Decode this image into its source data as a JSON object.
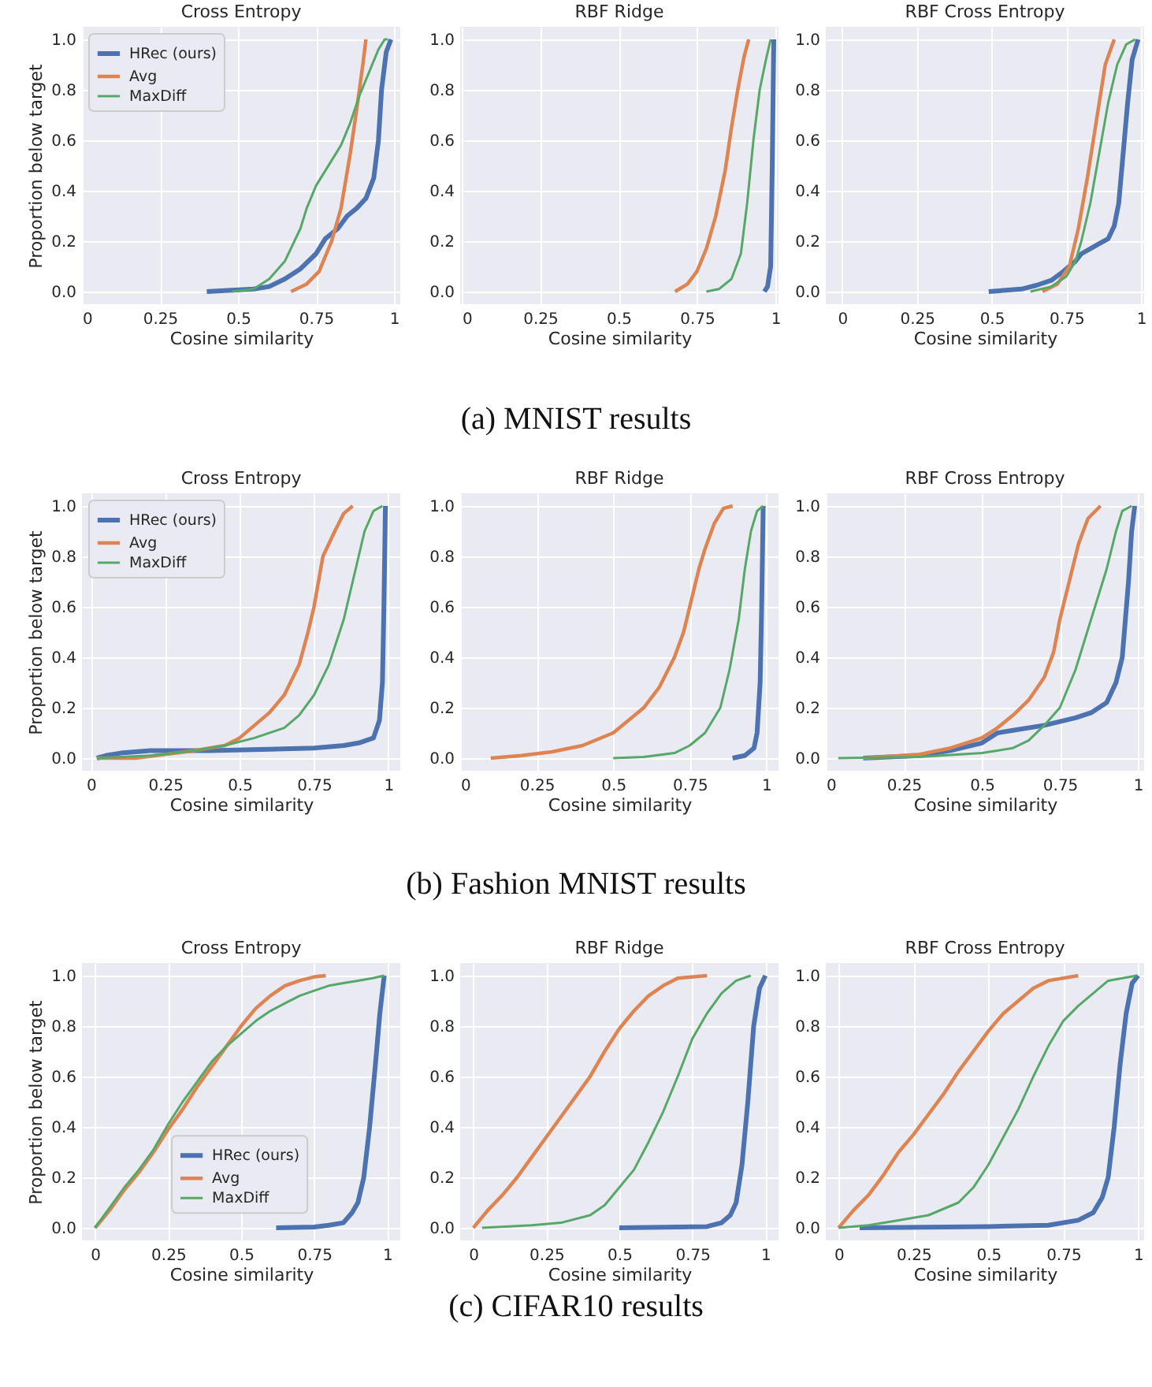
{
  "chart_data": [
    {
      "type": "line",
      "title": "Cross Entropy",
      "xlabel": "Cosine similarity",
      "ylabel": "Proportion below target",
      "xlim": [
        0,
        1.02
      ],
      "ylim": [
        -0.05,
        1.05
      ],
      "xticks": [
        0,
        0.25,
        0.5,
        0.75,
        1
      ],
      "yticks": [
        {
          "value": 0,
          "label": "0.0"
        },
        {
          "value": 0.2,
          "label": "0.2"
        },
        {
          "value": 0.4,
          "label": "0.4"
        },
        {
          "value": 0.6,
          "label": "0.6"
        },
        {
          "value": 0.8,
          "label": "0.8"
        },
        {
          "value": 1,
          "label": "1.0"
        }
      ],
      "grid": true,
      "legend": "top left",
      "series": [
        {
          "name": "HRec (ours)",
          "color": "#4c72b0",
          "x": [
            0.4,
            0.55,
            0.6,
            0.65,
            0.7,
            0.75,
            0.78,
            0.82,
            0.85,
            0.88,
            0.91,
            0.935,
            0.95,
            0.96,
            0.975,
            0.99
          ],
          "values": [
            0,
            0.01,
            0.02,
            0.05,
            0.09,
            0.15,
            0.21,
            0.25,
            0.3,
            0.33,
            0.37,
            0.45,
            0.6,
            0.8,
            0.95,
            1
          ]
        },
        {
          "name": "Avg",
          "color": "#dd8452",
          "x": [
            0.67,
            0.72,
            0.76,
            0.8,
            0.83,
            0.86,
            0.88,
            0.9,
            0.91
          ],
          "values": [
            0,
            0.03,
            0.08,
            0.2,
            0.33,
            0.55,
            0.72,
            0.9,
            1
          ]
        },
        {
          "name": "MaxDiff",
          "color": "#55a868",
          "x": [
            0.48,
            0.55,
            0.6,
            0.65,
            0.7,
            0.72,
            0.75,
            0.8,
            0.83,
            0.86,
            0.89,
            0.92,
            0.95,
            0.97,
            0.98
          ],
          "values": [
            0,
            0.01,
            0.05,
            0.12,
            0.25,
            0.33,
            0.42,
            0.52,
            0.58,
            0.67,
            0.78,
            0.87,
            0.96,
            1,
            1
          ]
        }
      ],
      "annotations": [
        "(a) MNIST results"
      ]
    },
    {
      "type": "line",
      "title": "RBF Ridge",
      "xlabel": "Cosine similarity",
      "xlim": [
        -0.005,
        1.01
      ],
      "ylim": [
        -0.05,
        1.05
      ],
      "xticks": [
        0,
        0.25,
        0.5,
        0.75,
        1
      ],
      "yticks": [
        {
          "value": 0,
          "label": "0.0"
        },
        {
          "value": 0.2,
          "label": "0.2"
        },
        {
          "value": 0.4,
          "label": "0.4"
        },
        {
          "value": 0.6,
          "label": "0.6"
        },
        {
          "value": 0.8,
          "label": "0.8"
        },
        {
          "value": 1,
          "label": "1.0"
        }
      ],
      "grid": true,
      "series": [
        {
          "color": "#4c72b0",
          "x": [
            0.965,
            0.975,
            0.985,
            0.99,
            0.995
          ],
          "values": [
            0,
            0.02,
            0.1,
            0.5,
            1
          ]
        },
        {
          "color": "#dd8452",
          "x": [
            0.68,
            0.72,
            0.75,
            0.78,
            0.81,
            0.84,
            0.86,
            0.88,
            0.9,
            0.915
          ],
          "values": [
            0,
            0.03,
            0.08,
            0.17,
            0.3,
            0.48,
            0.65,
            0.8,
            0.93,
            1
          ]
        },
        {
          "color": "#55a868",
          "x": [
            0.78,
            0.82,
            0.86,
            0.89,
            0.91,
            0.93,
            0.95,
            0.97,
            0.985
          ],
          "values": [
            0,
            0.01,
            0.05,
            0.15,
            0.35,
            0.6,
            0.8,
            0.92,
            1
          ]
        }
      ]
    },
    {
      "type": "line",
      "title": "RBF Cross Entropy",
      "xlabel": "Cosine similarity",
      "xlim": [
        -0.055,
        1.01
      ],
      "ylim": [
        -0.05,
        1.05
      ],
      "xticks": [
        0,
        0.25,
        0.5,
        0.75,
        1
      ],
      "yticks": [
        {
          "value": 0,
          "label": "0.0"
        },
        {
          "value": 0.2,
          "label": "0.2"
        },
        {
          "value": 0.4,
          "label": "0.4"
        },
        {
          "value": 0.6,
          "label": "0.6"
        },
        {
          "value": 0.8,
          "label": "0.8"
        },
        {
          "value": 1,
          "label": "1.0"
        }
      ],
      "grid": true,
      "series": [
        {
          "color": "#4c72b0",
          "x": [
            0.49,
            0.6,
            0.65,
            0.7,
            0.74,
            0.78,
            0.8,
            0.83,
            0.86,
            0.89,
            0.91,
            0.925,
            0.94,
            0.955,
            0.97,
            0.99
          ],
          "values": [
            0,
            0.01,
            0.025,
            0.045,
            0.08,
            0.12,
            0.15,
            0.17,
            0.19,
            0.21,
            0.26,
            0.35,
            0.55,
            0.75,
            0.92,
            1
          ]
        },
        {
          "color": "#dd8452",
          "x": [
            0.67,
            0.72,
            0.76,
            0.79,
            0.82,
            0.84,
            0.86,
            0.88,
            0.91
          ],
          "values": [
            0,
            0.03,
            0.1,
            0.25,
            0.45,
            0.6,
            0.75,
            0.9,
            1
          ]
        },
        {
          "color": "#55a868",
          "x": [
            0.63,
            0.7,
            0.75,
            0.78,
            0.8,
            0.83,
            0.86,
            0.89,
            0.92,
            0.95,
            0.98
          ],
          "values": [
            0,
            0.02,
            0.06,
            0.12,
            0.2,
            0.35,
            0.55,
            0.75,
            0.9,
            0.98,
            1
          ]
        }
      ]
    },
    {
      "type": "line",
      "title": "Cross Entropy",
      "xlabel": "Cosine similarity",
      "ylabel": "Proportion below target",
      "xlim": [
        -0.03,
        1.04
      ],
      "ylim": [
        -0.05,
        1.05
      ],
      "xticks": [
        0,
        0.25,
        0.5,
        0.75,
        1
      ],
      "yticks": [
        {
          "value": 0,
          "label": "0.0"
        },
        {
          "value": 0.2,
          "label": "0.2"
        },
        {
          "value": 0.4,
          "label": "0.4"
        },
        {
          "value": 0.6,
          "label": "0.6"
        },
        {
          "value": 0.8,
          "label": "0.8"
        },
        {
          "value": 1,
          "label": "1.0"
        }
      ],
      "grid": true,
      "legend": "top left",
      "series": [
        {
          "name": "HRec (ours)",
          "color": "#4c72b0",
          "x": [
            0.02,
            0.05,
            0.1,
            0.2,
            0.4,
            0.6,
            0.75,
            0.85,
            0.9,
            0.95,
            0.97,
            0.98,
            0.985,
            0.99
          ],
          "values": [
            0,
            0.01,
            0.02,
            0.03,
            0.03,
            0.035,
            0.04,
            0.05,
            0.06,
            0.08,
            0.15,
            0.3,
            0.6,
            1
          ]
        },
        {
          "name": "Avg",
          "color": "#dd8452",
          "x": [
            0.02,
            0.15,
            0.25,
            0.35,
            0.45,
            0.5,
            0.55,
            0.6,
            0.65,
            0.7,
            0.73,
            0.75,
            0.78,
            0.82,
            0.85,
            0.88
          ],
          "values": [
            0,
            0,
            0.015,
            0.03,
            0.05,
            0.08,
            0.13,
            0.18,
            0.25,
            0.37,
            0.5,
            0.6,
            0.8,
            0.9,
            0.97,
            1
          ]
        },
        {
          "name": "MaxDiff",
          "color": "#55a868",
          "x": [
            0.02,
            0.2,
            0.35,
            0.45,
            0.55,
            0.65,
            0.7,
            0.75,
            0.8,
            0.85,
            0.88,
            0.92,
            0.95,
            0.98
          ],
          "values": [
            0,
            0.01,
            0.03,
            0.05,
            0.08,
            0.12,
            0.17,
            0.25,
            0.37,
            0.55,
            0.7,
            0.9,
            0.98,
            1
          ]
        }
      ],
      "annotations": [
        "(b) Fashion MNIST results"
      ]
    },
    {
      "type": "line",
      "title": "RBF Ridge",
      "xlabel": "Cosine similarity",
      "xlim": [
        0,
        1.04
      ],
      "ylim": [
        -0.05,
        1.05
      ],
      "xticks": [
        0,
        0.25,
        0.5,
        0.75,
        1
      ],
      "yticks": [
        {
          "value": 0,
          "label": "0.0"
        },
        {
          "value": 0.2,
          "label": "0.2"
        },
        {
          "value": 0.4,
          "label": "0.4"
        },
        {
          "value": 0.6,
          "label": "0.6"
        },
        {
          "value": 0.8,
          "label": "0.8"
        },
        {
          "value": 1,
          "label": "1.0"
        }
      ],
      "grid": true,
      "series": [
        {
          "color": "#4c72b0",
          "x": [
            0.89,
            0.93,
            0.96,
            0.97,
            0.98,
            0.985,
            0.99
          ],
          "values": [
            0,
            0.01,
            0.04,
            0.1,
            0.3,
            0.6,
            1
          ]
        },
        {
          "color": "#dd8452",
          "x": [
            0.1,
            0.2,
            0.3,
            0.4,
            0.5,
            0.55,
            0.6,
            0.65,
            0.7,
            0.73,
            0.75,
            0.78,
            0.8,
            0.83,
            0.86,
            0.89
          ],
          "values": [
            0,
            0.01,
            0.025,
            0.05,
            0.1,
            0.15,
            0.2,
            0.28,
            0.4,
            0.5,
            0.6,
            0.75,
            0.83,
            0.93,
            0.99,
            1
          ]
        },
        {
          "color": "#55a868",
          "x": [
            0.5,
            0.6,
            0.7,
            0.75,
            0.8,
            0.85,
            0.88,
            0.91,
            0.93,
            0.95,
            0.97,
            0.99
          ],
          "values": [
            0,
            0.005,
            0.02,
            0.05,
            0.1,
            0.2,
            0.35,
            0.55,
            0.75,
            0.9,
            0.98,
            1
          ]
        }
      ]
    },
    {
      "type": "line",
      "title": "RBF Cross Entropy",
      "xlabel": "Cosine similarity",
      "xlim": [
        0,
        1.02
      ],
      "ylim": [
        -0.05,
        1.05
      ],
      "xticks": [
        0,
        0.25,
        0.5,
        0.75,
        1
      ],
      "yticks": [
        {
          "value": 0,
          "label": "0.0"
        },
        {
          "value": 0.2,
          "label": "0.2"
        },
        {
          "value": 0.4,
          "label": "0.4"
        },
        {
          "value": 0.6,
          "label": "0.6"
        },
        {
          "value": 0.8,
          "label": "0.8"
        },
        {
          "value": 1,
          "label": "1.0"
        }
      ],
      "grid": true,
      "series": [
        {
          "color": "#4c72b0",
          "x": [
            0.12,
            0.3,
            0.4,
            0.5,
            0.55,
            0.6,
            0.7,
            0.8,
            0.85,
            0.9,
            0.93,
            0.95,
            0.96,
            0.97,
            0.98,
            0.99
          ],
          "values": [
            0,
            0.01,
            0.03,
            0.06,
            0.1,
            0.11,
            0.13,
            0.16,
            0.18,
            0.22,
            0.3,
            0.4,
            0.55,
            0.7,
            0.9,
            1
          ]
        },
        {
          "color": "#dd8452",
          "x": [
            0.12,
            0.3,
            0.4,
            0.5,
            0.55,
            0.6,
            0.65,
            0.7,
            0.73,
            0.75,
            0.78,
            0.81,
            0.84,
            0.88
          ],
          "values": [
            0,
            0.015,
            0.04,
            0.08,
            0.12,
            0.17,
            0.23,
            0.32,
            0.42,
            0.55,
            0.7,
            0.85,
            0.95,
            1
          ]
        },
        {
          "color": "#55a868",
          "x": [
            0.04,
            0.3,
            0.5,
            0.6,
            0.65,
            0.7,
            0.75,
            0.8,
            0.85,
            0.9,
            0.93,
            0.95,
            0.98
          ],
          "values": [
            0,
            0.005,
            0.02,
            0.04,
            0.07,
            0.13,
            0.2,
            0.35,
            0.55,
            0.75,
            0.9,
            0.98,
            1
          ]
        }
      ]
    },
    {
      "type": "line",
      "title": "Cross Entropy",
      "xlabel": "Cosine similarity",
      "ylabel": "Proportion below target",
      "xlim": [
        -0.045,
        1.045
      ],
      "ylim": [
        -0.05,
        1.05
      ],
      "xticks": [
        0,
        0.25,
        0.5,
        0.75,
        1
      ],
      "yticks": [
        {
          "value": 0,
          "label": "0.0"
        },
        {
          "value": 0.2,
          "label": "0.2"
        },
        {
          "value": 0.4,
          "label": "0.4"
        },
        {
          "value": 0.6,
          "label": "0.6"
        },
        {
          "value": 0.8,
          "label": "0.8"
        },
        {
          "value": 1,
          "label": "1.0"
        }
      ],
      "grid": true,
      "legend": "bottom",
      "series": [
        {
          "name": "HRec (ours)",
          "color": "#4c72b0",
          "x": [
            0.62,
            0.75,
            0.8,
            0.85,
            0.88,
            0.9,
            0.92,
            0.94,
            0.96,
            0.975,
            0.99
          ],
          "values": [
            0,
            0.003,
            0.01,
            0.02,
            0.06,
            0.1,
            0.2,
            0.4,
            0.65,
            0.85,
            1
          ]
        },
        {
          "name": "Avg",
          "color": "#dd8452",
          "x": [
            0,
            0.05,
            0.1,
            0.15,
            0.2,
            0.25,
            0.3,
            0.35,
            0.4,
            0.45,
            0.5,
            0.55,
            0.6,
            0.65,
            0.7,
            0.75,
            0.79
          ],
          "values": [
            0,
            0.07,
            0.15,
            0.22,
            0.3,
            0.39,
            0.47,
            0.56,
            0.64,
            0.72,
            0.8,
            0.87,
            0.92,
            0.96,
            0.98,
            0.995,
            1
          ]
        },
        {
          "name": "MaxDiff",
          "color": "#55a868",
          "x": [
            0,
            0.05,
            0.1,
            0.15,
            0.2,
            0.25,
            0.3,
            0.35,
            0.4,
            0.45,
            0.5,
            0.55,
            0.6,
            0.65,
            0.7,
            0.75,
            0.8,
            0.85,
            0.9,
            0.95,
            0.99
          ],
          "values": [
            0,
            0.08,
            0.16,
            0.23,
            0.31,
            0.41,
            0.5,
            0.58,
            0.66,
            0.72,
            0.77,
            0.82,
            0.86,
            0.89,
            0.92,
            0.94,
            0.96,
            0.97,
            0.98,
            0.99,
            1
          ]
        }
      ],
      "annotations": [
        "(c) CIFAR10 results"
      ]
    },
    {
      "type": "line",
      "title": "RBF Ridge",
      "xlabel": "Cosine similarity",
      "xlim": [
        -0.045,
        1.045
      ],
      "ylim": [
        -0.05,
        1.05
      ],
      "xticks": [
        0,
        0.25,
        0.5,
        0.75,
        1
      ],
      "yticks": [
        {
          "value": 0,
          "label": "0.0"
        },
        {
          "value": 0.2,
          "label": "0.2"
        },
        {
          "value": 0.4,
          "label": "0.4"
        },
        {
          "value": 0.6,
          "label": "0.6"
        },
        {
          "value": 0.8,
          "label": "0.8"
        },
        {
          "value": 1,
          "label": "1.0"
        }
      ],
      "grid": true,
      "series": [
        {
          "color": "#4c72b0",
          "x": [
            0.5,
            0.8,
            0.85,
            0.88,
            0.9,
            0.92,
            0.94,
            0.96,
            0.98,
            1
          ],
          "values": [
            0,
            0.005,
            0.02,
            0.05,
            0.1,
            0.25,
            0.5,
            0.8,
            0.95,
            1
          ]
        },
        {
          "color": "#dd8452",
          "x": [
            0,
            0.05,
            0.1,
            0.15,
            0.2,
            0.25,
            0.3,
            0.35,
            0.4,
            0.45,
            0.5,
            0.55,
            0.6,
            0.65,
            0.7,
            0.8
          ],
          "values": [
            0,
            0.07,
            0.13,
            0.2,
            0.28,
            0.36,
            0.44,
            0.52,
            0.6,
            0.7,
            0.79,
            0.86,
            0.92,
            0.96,
            0.99,
            1
          ]
        },
        {
          "color": "#55a868",
          "x": [
            0.03,
            0.2,
            0.3,
            0.4,
            0.45,
            0.5,
            0.55,
            0.6,
            0.65,
            0.7,
            0.75,
            0.8,
            0.85,
            0.9,
            0.95
          ],
          "values": [
            0,
            0.01,
            0.02,
            0.05,
            0.09,
            0.16,
            0.23,
            0.34,
            0.46,
            0.6,
            0.75,
            0.85,
            0.93,
            0.98,
            1
          ]
        }
      ]
    },
    {
      "type": "line",
      "title": "RBF Cross Entropy",
      "xlabel": "Cosine similarity",
      "xlim": [
        -0.043,
        1.02
      ],
      "ylim": [
        -0.05,
        1.05
      ],
      "xticks": [
        0,
        0.25,
        0.5,
        0.75,
        1
      ],
      "yticks": [
        {
          "value": 0,
          "label": "0.0"
        },
        {
          "value": 0.2,
          "label": "0.2"
        },
        {
          "value": 0.4,
          "label": "0.4"
        },
        {
          "value": 0.6,
          "label": "0.6"
        },
        {
          "value": 0.8,
          "label": "0.8"
        },
        {
          "value": 1,
          "label": "1.0"
        }
      ],
      "grid": true,
      "series": [
        {
          "color": "#4c72b0",
          "x": [
            0.07,
            0.5,
            0.7,
            0.8,
            0.85,
            0.88,
            0.9,
            0.92,
            0.94,
            0.96,
            0.98,
            1
          ],
          "values": [
            0,
            0.005,
            0.01,
            0.03,
            0.06,
            0.12,
            0.2,
            0.4,
            0.65,
            0.85,
            0.97,
            1
          ]
        },
        {
          "color": "#dd8452",
          "x": [
            0,
            0.05,
            0.1,
            0.15,
            0.2,
            0.25,
            0.3,
            0.35,
            0.4,
            0.45,
            0.5,
            0.55,
            0.6,
            0.65,
            0.7,
            0.8
          ],
          "values": [
            0,
            0.07,
            0.13,
            0.21,
            0.3,
            0.37,
            0.45,
            0.53,
            0.62,
            0.7,
            0.78,
            0.85,
            0.9,
            0.95,
            0.98,
            1
          ]
        },
        {
          "color": "#55a868",
          "x": [
            0,
            0.1,
            0.2,
            0.3,
            0.4,
            0.45,
            0.5,
            0.55,
            0.6,
            0.65,
            0.7,
            0.75,
            0.8,
            0.85,
            0.9,
            0.995
          ],
          "values": [
            0,
            0.01,
            0.03,
            0.05,
            0.1,
            0.16,
            0.25,
            0.36,
            0.47,
            0.6,
            0.72,
            0.82,
            0.88,
            0.93,
            0.98,
            1
          ]
        }
      ]
    }
  ]
}
